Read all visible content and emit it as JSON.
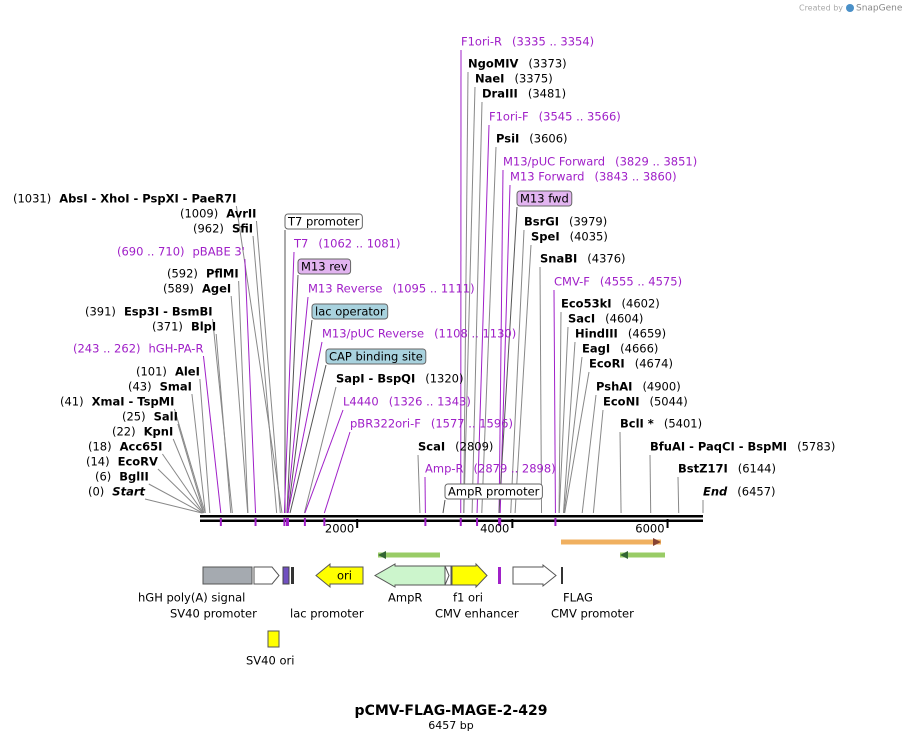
{
  "header": {
    "created_by": "Created by",
    "brand": "SnapGene"
  },
  "title": "pCMV-FLAG-MAGE-2-429",
  "length": "6457 bp",
  "axis": {
    "ticks": [
      "2000",
      "4000",
      "6000"
    ]
  },
  "sites": [
    {
      "name": "AbsI - XhoI - PspXI - PaeR7I",
      "position": "(1031)",
      "color": "#000"
    },
    {
      "name": "AvrII",
      "position": "(1009)",
      "color": "#000"
    },
    {
      "name": "SfiI",
      "position": "(962)",
      "color": "#000"
    },
    {
      "name": "pBABE 3'",
      "position": "(690 .. 710)",
      "color": "#a020c8"
    },
    {
      "name": "PflMI",
      "position": "(592)",
      "color": "#000"
    },
    {
      "name": "AgeI",
      "position": "(589)",
      "color": "#000"
    },
    {
      "name": "Esp3I - BsmBI",
      "position": "(391)",
      "color": "#000"
    },
    {
      "name": "BlpI",
      "position": "(371)",
      "color": "#000"
    },
    {
      "name": "hGH-PA-R",
      "position": "(243 .. 262)",
      "color": "#a020c8"
    },
    {
      "name": "AleI",
      "position": "(101)",
      "color": "#000"
    },
    {
      "name": "SmaI",
      "position": "(43)",
      "color": "#000"
    },
    {
      "name": "XmaI - TspMI",
      "position": "(41)",
      "color": "#000"
    },
    {
      "name": "SalI",
      "position": "(25)",
      "color": "#000"
    },
    {
      "name": "KpnI",
      "position": "(22)",
      "color": "#000"
    },
    {
      "name": "Acc65I",
      "position": "(18)",
      "color": "#000"
    },
    {
      "name": "EcoRV",
      "position": "(14)",
      "color": "#000"
    },
    {
      "name": "BglII",
      "position": "(6)",
      "color": "#000"
    },
    {
      "name": "Start",
      "position": "(0)",
      "color": "#000"
    },
    {
      "name": "F1ori-R",
      "position": "(3335 .. 3354)",
      "color": "#a020c8"
    },
    {
      "name": "NgoMIV",
      "position": "(3373)",
      "color": "#000"
    },
    {
      "name": "NaeI",
      "position": "(3375)",
      "color": "#000"
    },
    {
      "name": "DraIII",
      "position": "(3481)",
      "color": "#000"
    },
    {
      "name": "F1ori-F",
      "position": "(3545 .. 3566)",
      "color": "#a020c8"
    },
    {
      "name": "PsiI",
      "position": "(3606)",
      "color": "#000"
    },
    {
      "name": "M13/pUC Forward",
      "position": "(3829 .. 3851)",
      "color": "#a020c8"
    },
    {
      "name": "M13 Forward",
      "position": "(3843 .. 3860)",
      "color": "#a020c8"
    },
    {
      "name": "M13 fwd",
      "box": "#e2b4f0"
    },
    {
      "name": "BsrGI",
      "position": "(3979)",
      "color": "#000"
    },
    {
      "name": "SpeI",
      "position": "(4035)",
      "color": "#000"
    },
    {
      "name": "SnaBI",
      "position": "(4376)",
      "color": "#000"
    },
    {
      "name": "CMV-F",
      "position": "(4555 .. 4575)",
      "color": "#a020c8"
    },
    {
      "name": "Eco53kI",
      "position": "(4602)",
      "color": "#000"
    },
    {
      "name": "SacI",
      "position": "(4604)",
      "color": "#000"
    },
    {
      "name": "HindIII",
      "position": "(4659)",
      "color": "#000"
    },
    {
      "name": "EagI",
      "position": "(4666)",
      "color": "#000"
    },
    {
      "name": "EcoRI",
      "position": "(4674)",
      "color": "#000"
    },
    {
      "name": "PshAI",
      "position": "(4900)",
      "color": "#000"
    },
    {
      "name": "EcoNI",
      "position": "(5044)",
      "color": "#000"
    },
    {
      "name": "BclI *",
      "position": "(5401)",
      "color": "#000"
    },
    {
      "name": "BfuAI - PaqCI - BspMI",
      "position": "(5783)",
      "color": "#000"
    },
    {
      "name": "BstZ17I",
      "position": "(6144)",
      "color": "#000"
    },
    {
      "name": "End",
      "position": "(6457)",
      "color": "#000"
    },
    {
      "name": "T7 promoter",
      "box": "#ffffff"
    },
    {
      "name": "T7",
      "position": "(1062 .. 1081)",
      "color": "#a020c8"
    },
    {
      "name": "M13 rev",
      "box": "#e2b4f0"
    },
    {
      "name": "M13 Reverse",
      "position": "(1095 .. 1111)",
      "color": "#a020c8"
    },
    {
      "name": "lac operator",
      "box": "#a8d2de"
    },
    {
      "name": "M13/pUC Reverse",
      "position": "(1108 .. 1130)",
      "color": "#a020c8"
    },
    {
      "name": "CAP binding site",
      "box": "#a8d2de"
    },
    {
      "name": "SapI - BspQI",
      "position": "(1320)",
      "color": "#000"
    },
    {
      "name": "L4440",
      "position": "(1326 .. 1343)",
      "color": "#a020c8"
    },
    {
      "name": "pBR322ori-F",
      "position": "(1577 .. 1596)",
      "color": "#a020c8"
    },
    {
      "name": "ScaI",
      "position": "(2809)",
      "color": "#000"
    },
    {
      "name": "Amp-R",
      "position": "(2879 .. 2898)",
      "color": "#a020c8"
    },
    {
      "name": "AmpR promoter",
      "box": "#ffffff"
    }
  ],
  "features": [
    {
      "label": "hGH poly(A) signal"
    },
    {
      "label": "SV40 promoter"
    },
    {
      "label": "lac promoter"
    },
    {
      "label": "ori"
    },
    {
      "label": "AmpR"
    },
    {
      "label": "f1 ori"
    },
    {
      "label": "CMV enhancer"
    },
    {
      "label": "FLAG"
    },
    {
      "label": "CMV promoter"
    },
    {
      "label": "SV40 ori"
    }
  ]
}
